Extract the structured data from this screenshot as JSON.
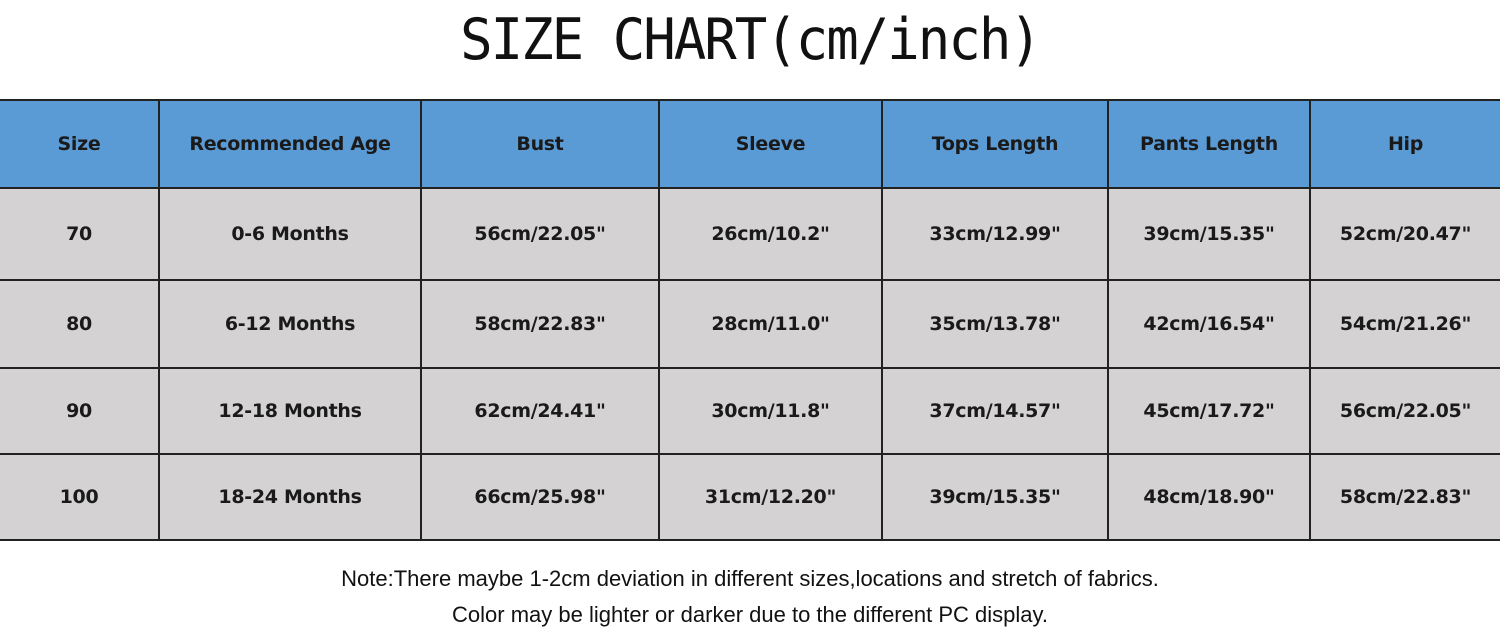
{
  "title": "SIZE CHART(cm/inch)",
  "table": {
    "headers": [
      "Size",
      "Recommended Age",
      "Bust",
      "Sleeve",
      "Tops Length",
      "Pants Length",
      "Hip"
    ],
    "rows": [
      [
        "70",
        "0-6 Months",
        "56cm/22.05\"",
        "26cm/10.2\"",
        "33cm/12.99\"",
        "39cm/15.35\"",
        "52cm/20.47\""
      ],
      [
        "80",
        "6-12 Months",
        "58cm/22.83\"",
        "28cm/11.0\"",
        "35cm/13.78\"",
        "42cm/16.54\"",
        "54cm/21.26\""
      ],
      [
        "90",
        "12-18 Months",
        "62cm/24.41\"",
        "30cm/11.8\"",
        "37cm/14.57\"",
        "45cm/17.72\"",
        "56cm/22.05\""
      ],
      [
        "100",
        "18-24 Months",
        "66cm/25.98\"",
        "31cm/12.20\"",
        "39cm/15.35\"",
        "48cm/18.90\"",
        "58cm/22.83\""
      ]
    ]
  },
  "notes": [
    "Note:There maybe 1-2cm deviation in different sizes,locations and stretch of fabrics.",
    "Color may be lighter or darker due to the different PC display."
  ],
  "colors": {
    "header_bg": "#5b9bd5",
    "row_bg": "#d4d2d3",
    "border": "#222222"
  }
}
